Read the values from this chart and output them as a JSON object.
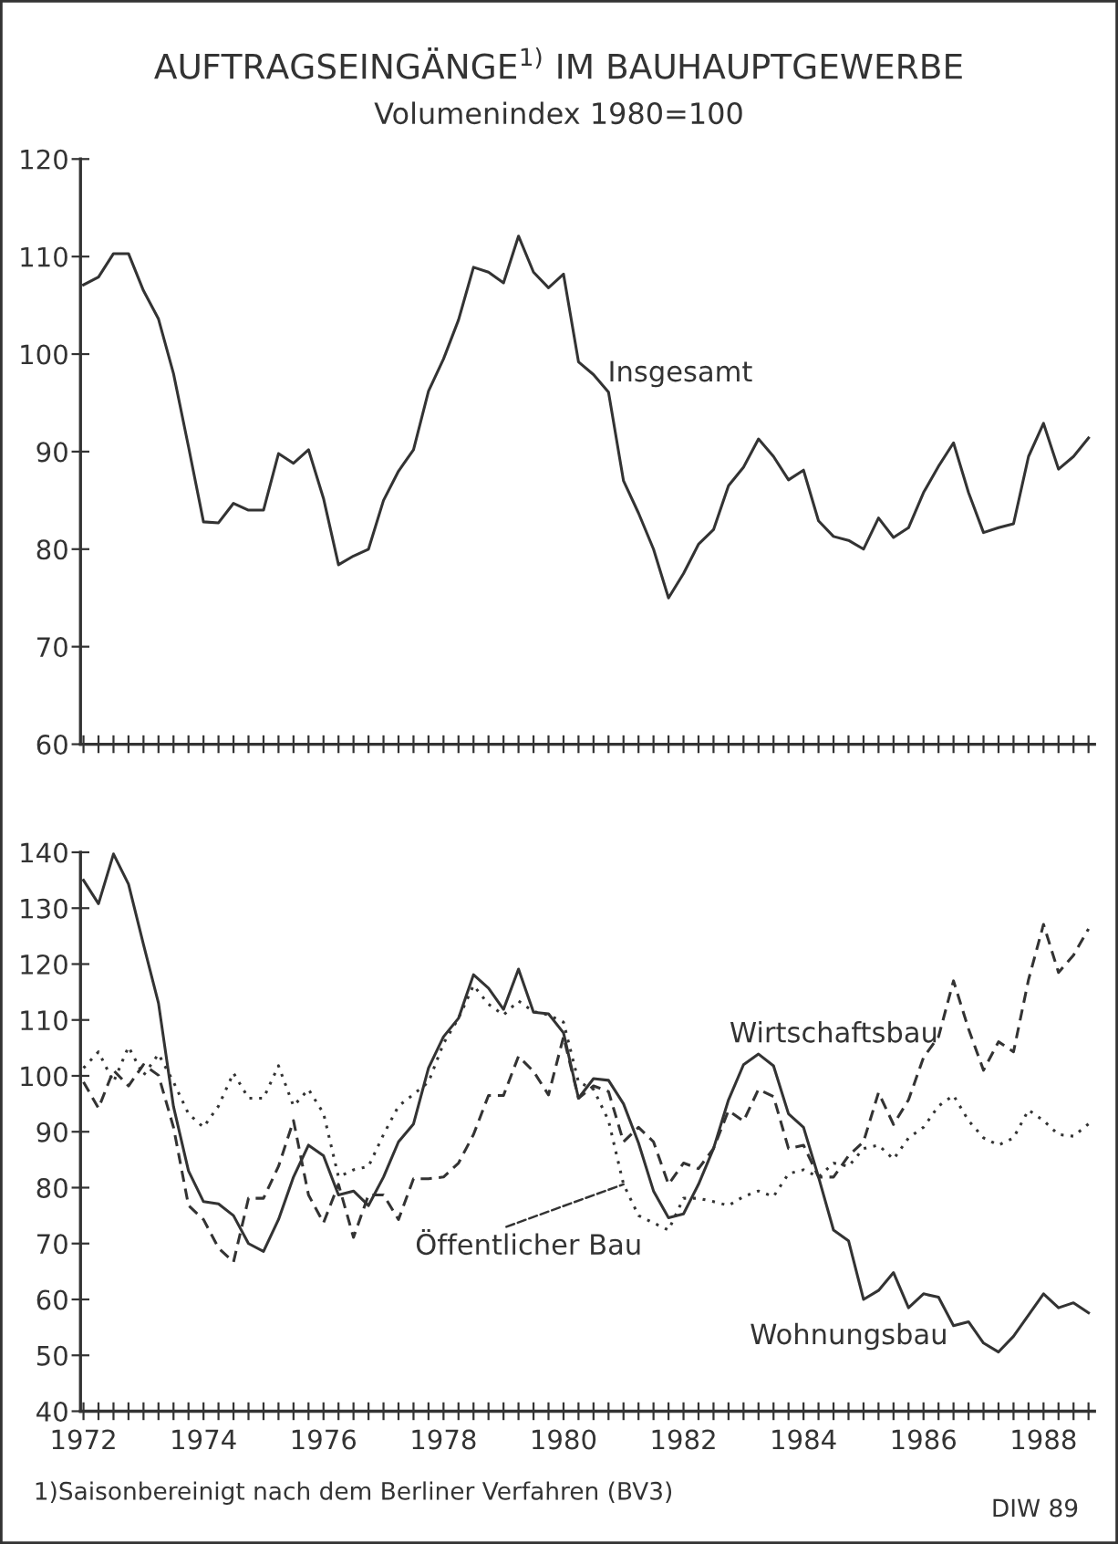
{
  "chart_data": [
    {
      "type": "line",
      "title": "AUFTRAGSEINGÄNGE$^{1)}$ IM BAUHAUPTGEWERBE",
      "subtitle": "Volumenindex 1980=100",
      "x": [
        1972,
        1972.25,
        1972.5,
        1972.75,
        1973,
        1973.25,
        1973.5,
        1973.75,
        1974,
        1974.25,
        1974.5,
        1974.75,
        1975,
        1975.25,
        1975.5,
        1975.75,
        1976,
        1976.25,
        1976.5,
        1976.75,
        1977,
        1977.25,
        1977.5,
        1977.75,
        1978,
        1978.25,
        1978.5,
        1978.75,
        1979,
        1979.25,
        1979.5,
        1979.75,
        1980,
        1980.25,
        1980.5,
        1980.75,
        1981,
        1981.25,
        1981.5,
        1981.75,
        1982,
        1982.25,
        1982.5,
        1982.75,
        1983,
        1983.25,
        1983.5,
        1983.75,
        1984,
        1984.25,
        1984.5,
        1984.75,
        1985,
        1985.25,
        1985.5,
        1985.75,
        1986,
        1986.25,
        1986.5,
        1986.75,
        1987,
        1987.25,
        1987.5,
        1987.75,
        1988,
        1988.25,
        1988.5,
        1988.75
      ],
      "series": [
        {
          "name": "Insgesamt",
          "color": "#333333",
          "line_style": "solid",
          "values": [
            107.1,
            107.9,
            110.3,
            110.3,
            106.5,
            103.6,
            98,
            90.5,
            82.8,
            82.7,
            84.7,
            84,
            84,
            89.8,
            88.8,
            90.2,
            85.2,
            78.4,
            79.3,
            80,
            85,
            88,
            90.2,
            96.2,
            99.5,
            103.5,
            108.9,
            108.4,
            107.3,
            112.1,
            108.4,
            106.8,
            108.2,
            99.2,
            97.9,
            96.1,
            87,
            83.7,
            80,
            75,
            77.5,
            80.5,
            82,
            86.5,
            88.4,
            91.3,
            89.5,
            87.1,
            88.1,
            82.9,
            81.3,
            80.9,
            80,
            83.2,
            81.2,
            82.2,
            85.8,
            88.5,
            90.9,
            85.8,
            81.7,
            82.2,
            82.6,
            89.5,
            92.9,
            88.2,
            89.5,
            91.4
          ]
        }
      ],
      "xlim": [
        1971.95,
        1988.85
      ],
      "ylim": [
        60,
        120
      ],
      "yticks": [
        60,
        70,
        80,
        90,
        100,
        110,
        120
      ],
      "xticks": [
        1972,
        {
          "value": 1972.25,
          "label": null
        },
        {
          "value": 1972.5,
          "label": null
        },
        {
          "value": 1972.75,
          "label": null
        },
        {
          "value": 1973,
          "label": null
        },
        {
          "value": 1973.25,
          "label": null
        },
        {
          "value": 1973.5,
          "label": null
        },
        {
          "value": 1973.75,
          "label": null
        },
        1974,
        {
          "value": 1974.25,
          "label": null
        },
        {
          "value": 1974.5,
          "label": null
        },
        {
          "value": 1974.75,
          "label": null
        },
        {
          "value": 1975,
          "label": null
        },
        {
          "value": 1975.25,
          "label": null
        },
        {
          "value": 1975.5,
          "label": null
        },
        {
          "value": 1975.75,
          "label": null
        },
        1976,
        {
          "value": 1976.25,
          "label": null
        },
        {
          "value": 1976.5,
          "label": null
        },
        {
          "value": 1976.75,
          "label": null
        },
        {
          "value": 1977,
          "label": null
        },
        {
          "value": 1977.25,
          "label": null
        },
        {
          "value": 1977.5,
          "label": null
        },
        {
          "value": 1977.75,
          "label": null
        },
        1978,
        {
          "value": 1978.25,
          "label": null
        },
        {
          "value": 1978.5,
          "label": null
        },
        {
          "value": 1978.75,
          "label": null
        },
        {
          "value": 1979,
          "label": null
        },
        {
          "value": 1979.25,
          "label": null
        },
        {
          "value": 1979.5,
          "label": null
        },
        {
          "value": 1979.75,
          "label": null
        },
        1980,
        {
          "value": 1980.25,
          "label": null
        },
        {
          "value": 1980.5,
          "label": null
        },
        {
          "value": 1980.75,
          "label": null
        },
        {
          "value": 1981,
          "label": null
        },
        {
          "value": 1981.25,
          "label": null
        },
        {
          "value": 1981.5,
          "label": null
        },
        {
          "value": 1981.75,
          "label": null
        },
        1982,
        {
          "value": 1982.25,
          "label": null
        },
        {
          "value": 1982.5,
          "label": null
        },
        {
          "value": 1982.75,
          "label": null
        },
        {
          "value": 1983,
          "label": null
        },
        {
          "value": 1983.25,
          "label": null
        },
        {
          "value": 1983.5,
          "label": null
        },
        {
          "value": 1983.75,
          "label": null
        },
        1984,
        {
          "value": 1984.25,
          "label": null
        },
        {
          "value": 1984.5,
          "label": null
        },
        {
          "value": 1984.75,
          "label": null
        },
        {
          "value": 1985,
          "label": null
        },
        {
          "value": 1985.25,
          "label": null
        },
        {
          "value": 1985.5,
          "label": null
        },
        {
          "value": 1985.75,
          "label": null
        },
        1986,
        {
          "value": 1986.25,
          "label": null
        },
        {
          "value": 1986.5,
          "label": null
        },
        {
          "value": 1986.75,
          "label": null
        },
        {
          "value": 1987,
          "label": null
        },
        {
          "value": 1987.25,
          "label": null
        },
        {
          "value": 1987.5,
          "label": null
        },
        {
          "value": 1987.75,
          "label": null
        },
        1988,
        {
          "value": 1988.25,
          "label": null
        },
        {
          "value": 1988.5,
          "label": null
        },
        {
          "value": 1988.75,
          "label": null
        }
      ],
      "tick_labels": "y",
      "grid": false,
      "legend": false
    },
    {
      "type": "line",
      "x": [
        1972,
        1972.25,
        1972.5,
        1972.75,
        1973,
        1973.25,
        1973.5,
        1973.75,
        1974,
        1974.25,
        1974.5,
        1974.75,
        1975,
        1975.25,
        1975.5,
        1975.75,
        1976,
        1976.25,
        1976.5,
        1976.75,
        1977,
        1977.25,
        1977.5,
        1977.75,
        1978,
        1978.25,
        1978.5,
        1978.75,
        1979,
        1979.25,
        1979.5,
        1979.75,
        1980,
        1980.25,
        1980.5,
        1980.75,
        1981,
        1981.25,
        1981.5,
        1981.75,
        1982,
        1982.25,
        1982.5,
        1982.75,
        1983,
        1983.25,
        1983.5,
        1983.75,
        1984,
        1984.25,
        1984.5,
        1984.75,
        1985,
        1985.25,
        1985.5,
        1985.75,
        1986,
        1986.25,
        1986.5,
        1986.75,
        1987,
        1987.25,
        1987.5,
        1987.75,
        1988,
        1988.25,
        1988.5,
        1988.75
      ],
      "series": [
        {
          "name": "Wirtschaftsbau",
          "color": "#333333",
          "line_style": "dashed",
          "values": [
            98.9,
            94.2,
            101,
            98.2,
            102,
            100.1,
            90.8,
            76.8,
            74.3,
            69.2,
            66.7,
            78.1,
            78.1,
            83.8,
            92,
            78.7,
            73.7,
            80.6,
            71.1,
            78.7,
            78.7,
            74.3,
            81.6,
            81.6,
            81.9,
            84.4,
            89.5,
            96.5,
            96.5,
            103.5,
            100.8,
            96.6,
            107,
            96,
            98.2,
            97.2,
            88.2,
            90.8,
            88.2,
            80.6,
            84.4,
            83.4,
            87,
            93.8,
            91.9,
            97.6,
            96.3,
            87,
            87.6,
            81.9,
            81.9,
            85.7,
            88.2,
            97,
            91.3,
            95.7,
            103.3,
            107,
            117,
            108.4,
            101,
            106.1,
            104.3,
            117.2,
            127.1,
            118.5,
            121.6,
            126.3
          ]
        },
        {
          "name": "Öffentlicher Bau",
          "color": "#333333",
          "line_style": "dotted",
          "values": [
            101.4,
            104.3,
            98.9,
            105.2,
            100.1,
            103.9,
            98.9,
            93.2,
            90.8,
            94.6,
            100.5,
            96,
            96,
            101.8,
            94.6,
            97.6,
            93.3,
            81.9,
            83.2,
            83.8,
            89.5,
            94.6,
            96.7,
            98.9,
            105.8,
            110.3,
            116.2,
            112.8,
            110.9,
            113.4,
            111.5,
            110.9,
            109.6,
            98.9,
            97.6,
            92,
            80.6,
            75,
            73.7,
            72.4,
            78.1,
            78.1,
            77.5,
            76.8,
            78.4,
            79.4,
            78.4,
            82.5,
            83.2,
            81.9,
            84.4,
            83.8,
            87,
            87.6,
            85.1,
            88.9,
            90.8,
            94.6,
            96.5,
            92,
            88.9,
            87.6,
            88.9,
            93.9,
            92,
            89.5,
            89.2,
            91.4
          ]
        },
        {
          "name": "Wohnungsbau",
          "color": "#333333",
          "line_style": "solid",
          "values": [
            135,
            130.8,
            139.7,
            134.3,
            123.5,
            113,
            94.5,
            83,
            77.5,
            77.1,
            75,
            70,
            68.6,
            74.3,
            81.9,
            87.6,
            85.7,
            78.7,
            79.4,
            76.8,
            81.9,
            88.2,
            91.4,
            101.4,
            107,
            110.3,
            118.1,
            115.7,
            111.9,
            119.1,
            111.4,
            111.1,
            107.7,
            96,
            99.5,
            99.2,
            95,
            88,
            79.4,
            74.6,
            75.3,
            80.6,
            87,
            95.7,
            102,
            103.9,
            101.8,
            93.2,
            90.8,
            81.9,
            72.4,
            70.5,
            60,
            61.6,
            64.8,
            58.5,
            61,
            60.4,
            55.3,
            56,
            52.2,
            50.6,
            53.4,
            57.2,
            61,
            58.5,
            59.4,
            57.6
          ]
        }
      ],
      "xlim": [
        1971.95,
        1988.85
      ],
      "ylim": [
        40,
        140
      ],
      "yticks": [
        40,
        50,
        60,
        70,
        80,
        90,
        100,
        110,
        120,
        130,
        140
      ],
      "xticks": [
        1972,
        {
          "value": 1972.25,
          "label": null
        },
        {
          "value": 1972.5,
          "label": null
        },
        {
          "value": 1972.75,
          "label": null
        },
        {
          "value": 1973,
          "label": null
        },
        {
          "value": 1973.25,
          "label": null
        },
        {
          "value": 1973.5,
          "label": null
        },
        {
          "value": 1973.75,
          "label": null
        },
        1974,
        {
          "value": 1974.25,
          "label": null
        },
        {
          "value": 1974.5,
          "label": null
        },
        {
          "value": 1974.75,
          "label": null
        },
        {
          "value": 1975,
          "label": null
        },
        {
          "value": 1975.25,
          "label": null
        },
        {
          "value": 1975.5,
          "label": null
        },
        {
          "value": 1975.75,
          "label": null
        },
        1976,
        {
          "value": 1976.25,
          "label": null
        },
        {
          "value": 1976.5,
          "label": null
        },
        {
          "value": 1976.75,
          "label": null
        },
        {
          "value": 1977,
          "label": null
        },
        {
          "value": 1977.25,
          "label": null
        },
        {
          "value": 1977.5,
          "label": null
        },
        {
          "value": 1977.75,
          "label": null
        },
        1978,
        {
          "value": 1978.25,
          "label": null
        },
        {
          "value": 1978.5,
          "label": null
        },
        {
          "value": 1978.75,
          "label": null
        },
        {
          "value": 1979,
          "label": null
        },
        {
          "value": 1979.25,
          "label": null
        },
        {
          "value": 1979.5,
          "label": null
        },
        {
          "value": 1979.75,
          "label": null
        },
        1980,
        {
          "value": 1980.25,
          "label": null
        },
        {
          "value": 1980.5,
          "label": null
        },
        {
          "value": 1980.75,
          "label": null
        },
        {
          "value": 1981,
          "label": null
        },
        {
          "value": 1981.25,
          "label": null
        },
        {
          "value": 1981.5,
          "label": null
        },
        {
          "value": 1981.75,
          "label": null
        },
        1982,
        {
          "value": 1982.25,
          "label": null
        },
        {
          "value": 1982.5,
          "label": null
        },
        {
          "value": 1982.75,
          "label": null
        },
        {
          "value": 1983,
          "label": null
        },
        {
          "value": 1983.25,
          "label": null
        },
        {
          "value": 1983.5,
          "label": null
        },
        {
          "value": 1983.75,
          "label": null
        },
        1984,
        {
          "value": 1984.25,
          "label": null
        },
        {
          "value": 1984.5,
          "label": null
        },
        {
          "value": 1984.75,
          "label": null
        },
        {
          "value": 1985,
          "label": null
        },
        {
          "value": 1985.25,
          "label": null
        },
        {
          "value": 1985.5,
          "label": null
        },
        {
          "value": 1985.75,
          "label": null
        },
        1986,
        {
          "value": 1986.25,
          "label": null
        },
        {
          "value": 1986.5,
          "label": null
        },
        {
          "value": 1986.75,
          "label": null
        },
        {
          "value": 1987,
          "label": null
        },
        {
          "value": 1987.25,
          "label": null
        },
        {
          "value": 1987.5,
          "label": null
        },
        {
          "value": 1987.75,
          "label": null
        },
        1988,
        {
          "value": 1988.25,
          "label": null
        },
        {
          "value": 1988.5,
          "label": null
        },
        {
          "value": 1988.75,
          "label": null
        }
      ],
      "grid": false,
      "annotations": [
        "1)Saisonbereinigt nach dem Berliner Verfahren (BV3)",
        "DIW 89"
      ]
    }
  ]
}
